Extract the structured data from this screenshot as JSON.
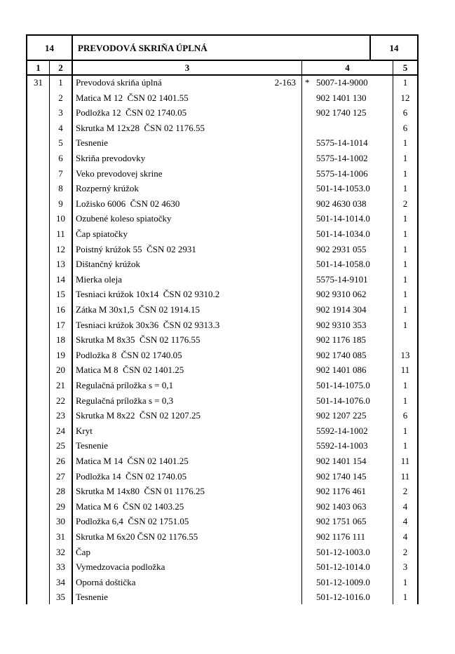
{
  "header": {
    "section_left": "14",
    "title": "PREVODOVÁ SKRIŇA ÚPLNÁ",
    "section_right": "14"
  },
  "columns": [
    "1",
    "2",
    "3",
    "4",
    "5"
  ],
  "group": "31",
  "rows": [
    {
      "pos": "1",
      "name": "Prevodová skriňa úplná",
      "ref": "2-163",
      "mark": "*",
      "code": "5007-14-9000",
      "qty": "1"
    },
    {
      "pos": "2",
      "name": "Matica M 12  ČSN 02 1401.55",
      "code": "902 1401 130",
      "qty": "12"
    },
    {
      "pos": "3",
      "name": "Podložka 12  ČSN 02 1740.05",
      "code": "902 1740 125",
      "qty": "6"
    },
    {
      "pos": "4",
      "name": "Skrutka M 12x28  ČSN 02 1176.55",
      "code": "",
      "qty": "6"
    },
    {
      "pos": "5",
      "name": "Tesnenie",
      "code": "5575-14-1014",
      "qty": "1"
    },
    {
      "pos": "6",
      "name": "Skriňa prevodovky",
      "code": "5575-14-1002",
      "qty": "1"
    },
    {
      "pos": "7",
      "name": "Veko prevodovej skrine",
      "code": "5575-14-1006",
      "qty": "1"
    },
    {
      "pos": "8",
      "name": "Rozperný krúžok",
      "code": "501-14-1053.0",
      "qty": "1"
    },
    {
      "pos": "9",
      "name": "Ložisko 6006  ČSN 02 4630",
      "code": "902 4630 038",
      "qty": "2"
    },
    {
      "pos": "10",
      "name": "Ozubené koleso spiatočky",
      "code": "501-14-1014.0",
      "qty": "1"
    },
    {
      "pos": "11",
      "name": "Čap spiatočky",
      "code": "501-14-1034.0",
      "qty": "1"
    },
    {
      "pos": "12",
      "name": "Poistný krúžok 55  ČSN 02 2931",
      "code": "902 2931 055",
      "qty": "1"
    },
    {
      "pos": "13",
      "name": "Dištančný krúžok",
      "code": "501-14-1058.0",
      "qty": "1"
    },
    {
      "pos": "14",
      "name": "Mierka oleja",
      "code": "5575-14-9101",
      "qty": "1"
    },
    {
      "pos": "15",
      "name": "Tesniaci krúžok 10x14  ČSN 02 9310.2",
      "code": "902 9310 062",
      "qty": "1"
    },
    {
      "pos": "16",
      "name": "Zátka M 30x1,5  ČSN 02 1914.15",
      "code": "902 1914 304",
      "qty": "1"
    },
    {
      "pos": "17",
      "name": "Tesniaci krúžok 30x36  ČSN 02 9313.3",
      "code": "902 9310 353",
      "qty": "1"
    },
    {
      "pos": "18",
      "name": "Skrutka M 8x35  ČSN 02 1176.55",
      "code": "902 1176 185",
      "qty": ""
    },
    {
      "pos": "19",
      "name": "Podložka 8  ČSN 02 1740.05",
      "code": "902 1740 085",
      "qty": "13"
    },
    {
      "pos": "20",
      "name": "Matica M 8  ČSN 02 1401.25",
      "code": "902 1401 086",
      "qty": "11"
    },
    {
      "pos": "21",
      "name": "Regulačná príložka s = 0,1",
      "code": "501-14-1075.0",
      "qty": "1"
    },
    {
      "pos": "22",
      "name": "Regulačná príložka s = 0,3",
      "code": "501-14-1076.0",
      "qty": "1"
    },
    {
      "pos": "23",
      "name": "Skrutka M 8x22  ČSN 02 1207.25",
      "code": "902 1207 225",
      "qty": "6"
    },
    {
      "pos": "24",
      "name": "Kryt",
      "code": "5592-14-1002",
      "qty": "1"
    },
    {
      "pos": "25",
      "name": "Tesnenie",
      "code": "5592-14-1003",
      "qty": "1"
    },
    {
      "pos": "26",
      "name": "Matica M 14  ČSN 02 1401.25",
      "code": "902 1401 154",
      "qty": "11"
    },
    {
      "pos": "27",
      "name": "Podložka 14  ČSN 02 1740.05",
      "code": "902 1740 145",
      "qty": "11"
    },
    {
      "pos": "28",
      "name": "Skrutka M 14x80  ČSN 01 1176.25",
      "code": "902 1176 461",
      "qty": "2"
    },
    {
      "pos": "29",
      "name": "Matica M 6  ČSN 02 1403.25",
      "code": "902 1403 063",
      "qty": "4"
    },
    {
      "pos": "30",
      "name": "Podložka 6,4  ČSN 02 1751.05",
      "code": "902 1751 065",
      "qty": "4"
    },
    {
      "pos": "31",
      "name": "Skrutka M 6x20 ČSN 02 1176.55",
      "code": "902 1176 111",
      "qty": "4"
    },
    {
      "pos": "32",
      "name": "Čap",
      "code": "501-12-1003.0",
      "qty": "2"
    },
    {
      "pos": "33",
      "name": "Vymedzovacia podložka",
      "code": "501-12-1014.0",
      "qty": "3"
    },
    {
      "pos": "34",
      "name": "Oporná doštička",
      "code": "501-12-1009.0",
      "qty": "1"
    },
    {
      "pos": "35",
      "name": "Tesnenie",
      "code": "501-12-1016.0",
      "qty": "1"
    }
  ]
}
